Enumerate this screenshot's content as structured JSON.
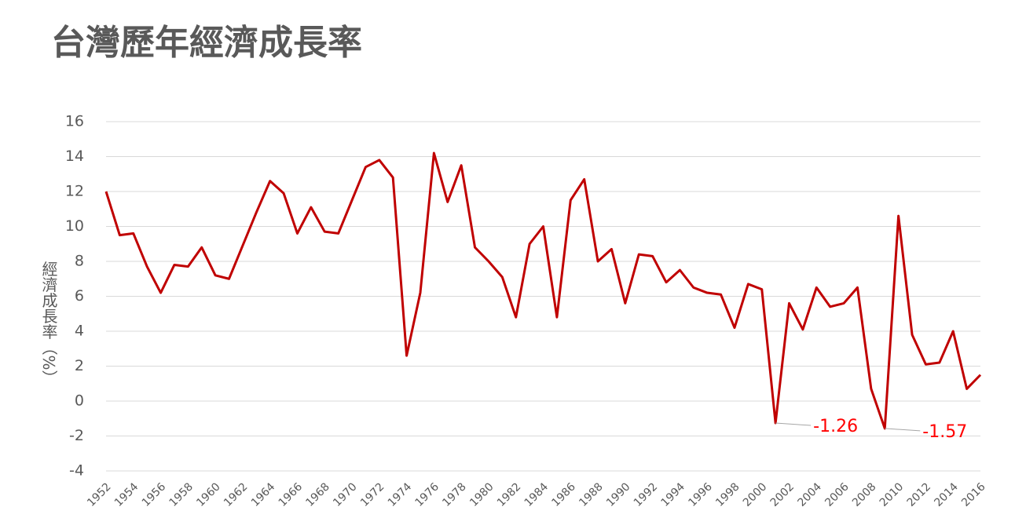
{
  "chart_data": {
    "type": "line",
    "title": "台灣歷年經濟成長率",
    "y_label": "經濟成長率（%）",
    "categories": [
      "1952",
      null,
      "1954",
      null,
      "1956",
      null,
      "1958",
      null,
      "1960",
      null,
      "1962",
      null,
      "1964",
      null,
      "1966",
      null,
      "1968",
      null,
      "1970",
      null,
      "1972",
      null,
      "1974",
      null,
      "1976",
      null,
      "1978",
      null,
      "1980",
      null,
      "1982",
      null,
      "1984",
      null,
      "1986",
      null,
      "1988",
      null,
      "1990",
      null,
      "1992",
      null,
      "1994",
      null,
      "1996",
      null,
      "1998",
      null,
      "2000",
      null,
      "2002",
      null,
      "2004",
      null,
      "2006",
      null,
      "2008",
      null,
      "2010",
      null,
      "2012",
      null,
      "2014",
      null,
      "2016"
    ],
    "series": [
      {
        "name": "經濟成長率",
        "color": "#c00000",
        "values": [
          12.0,
          9.5,
          9.6,
          7.7,
          6.2,
          7.8,
          7.7,
          8.8,
          7.2,
          7.0,
          8.9,
          10.8,
          12.6,
          11.9,
          9.6,
          11.1,
          9.7,
          9.6,
          11.5,
          13.4,
          13.8,
          12.8,
          2.6,
          6.2,
          14.2,
          11.4,
          13.5,
          8.8,
          8.0,
          7.1,
          4.8,
          9.0,
          10.0,
          4.8,
          11.5,
          12.7,
          8.0,
          8.7,
          5.6,
          8.4,
          8.3,
          6.8,
          7.5,
          6.5,
          6.2,
          6.1,
          4.2,
          6.7,
          6.4,
          -1.26,
          5.6,
          4.1,
          6.5,
          5.4,
          5.6,
          6.5,
          0.7,
          -1.57,
          10.6,
          3.8,
          2.1,
          2.2,
          4.0,
          0.7,
          1.5
        ],
        "value_labels": [
          null,
          null,
          null,
          null,
          null,
          null,
          null,
          null,
          null,
          null,
          null,
          null,
          null,
          null,
          null,
          null,
          null,
          null,
          null,
          null,
          null,
          null,
          null,
          null,
          null,
          null,
          null,
          null,
          null,
          null,
          null,
          null,
          null,
          null,
          null,
          null,
          null,
          null,
          null,
          null,
          null,
          null,
          null,
          null,
          null,
          null,
          null,
          null,
          null,
          "-1.26",
          null,
          null,
          null,
          null,
          null,
          null,
          null,
          "-1.57",
          null,
          null,
          null,
          null,
          null,
          null,
          null
        ],
        "label_color": "#ff0000"
      }
    ],
    "ylim": [
      -4,
      16
    ],
    "yticks": [
      -4,
      -2,
      0,
      2,
      4,
      6,
      8,
      10,
      12,
      14,
      16
    ],
    "grid": true
  }
}
